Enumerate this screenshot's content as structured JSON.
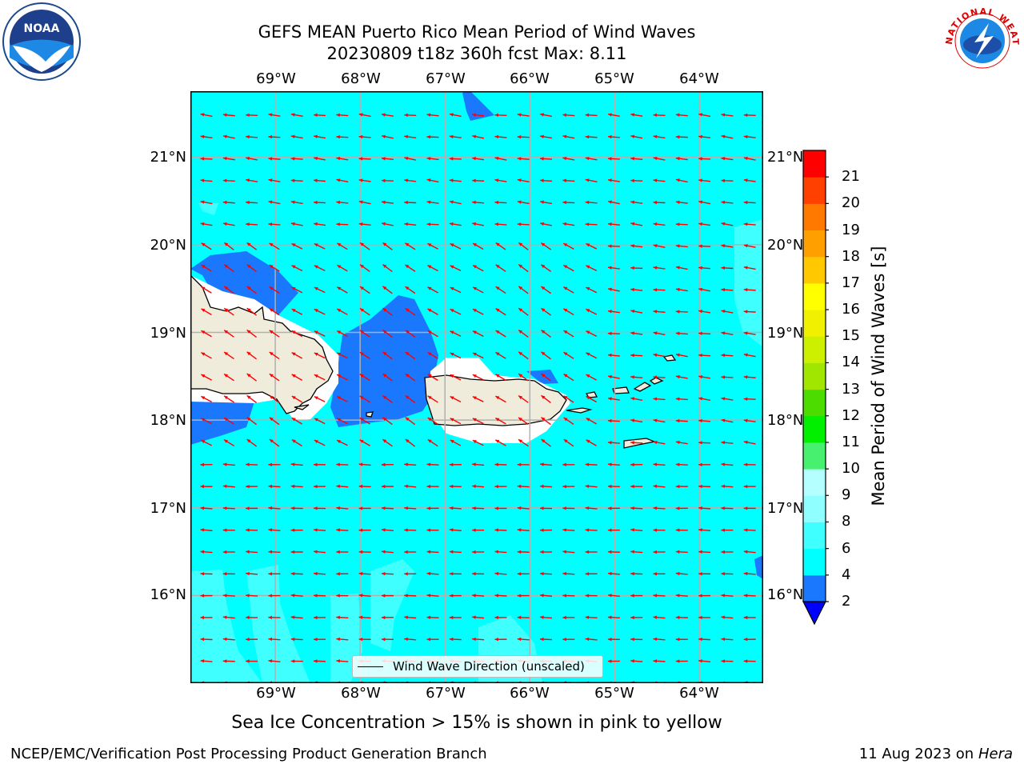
{
  "title": {
    "line1": "GEFS MEAN Puerto Rico Mean Period of Wind Waves",
    "line2": "20230809 t18z 360h fcst   Max: 8.11"
  },
  "logos": {
    "left": {
      "name": "noaa-logo",
      "text": "NOAA"
    },
    "right": {
      "name": "nws-logo",
      "text": "NATIONAL WEATHER SERVICE"
    }
  },
  "map": {
    "lon_labels": [
      "69°W",
      "68°W",
      "67°W",
      "66°W",
      "65°W",
      "64°W"
    ],
    "lat_labels": [
      "21°N",
      "20°N",
      "19°N",
      "18°N",
      "17°N",
      "16°N"
    ],
    "lon_range": [
      -70.0,
      -63.25
    ],
    "lat_range": [
      15.0,
      21.75
    ],
    "ocean_color": "#00ffff",
    "land_color": "#f0ecdc",
    "arrow_color": "#ff0000",
    "grid_color": "#b0b0b0",
    "gridlines": true
  },
  "legend": {
    "label": "Wind Wave Direction (unscaled)",
    "placement": "lower-center"
  },
  "colorbar": {
    "title": "Mean Period of Wind Waves [s]",
    "ticks": [
      "2",
      "4",
      "6",
      "8",
      "9",
      "10",
      "11",
      "12",
      "13",
      "14",
      "15",
      "16",
      "17",
      "18",
      "19",
      "20",
      "21"
    ],
    "colors": [
      "#1a78ff",
      "#00ffff",
      "#40ffff",
      "#90ffff",
      "#b4ffff",
      "#48f070",
      "#00f000",
      "#4cdc00",
      "#a0e600",
      "#ccf000",
      "#f0f000",
      "#ffff00",
      "#ffc800",
      "#ffa000",
      "#ff7800",
      "#ff4000",
      "#ff0000"
    ],
    "extend_min_color": "#0000ff"
  },
  "footer": {
    "ice_note": "Sea Ice Concentration > 15% is shown in pink to yellow",
    "credit": "NCEP/EMC/Verification Post Processing Product Generation Branch",
    "date": "11 Aug 2023 on",
    "machine": "Hera"
  }
}
